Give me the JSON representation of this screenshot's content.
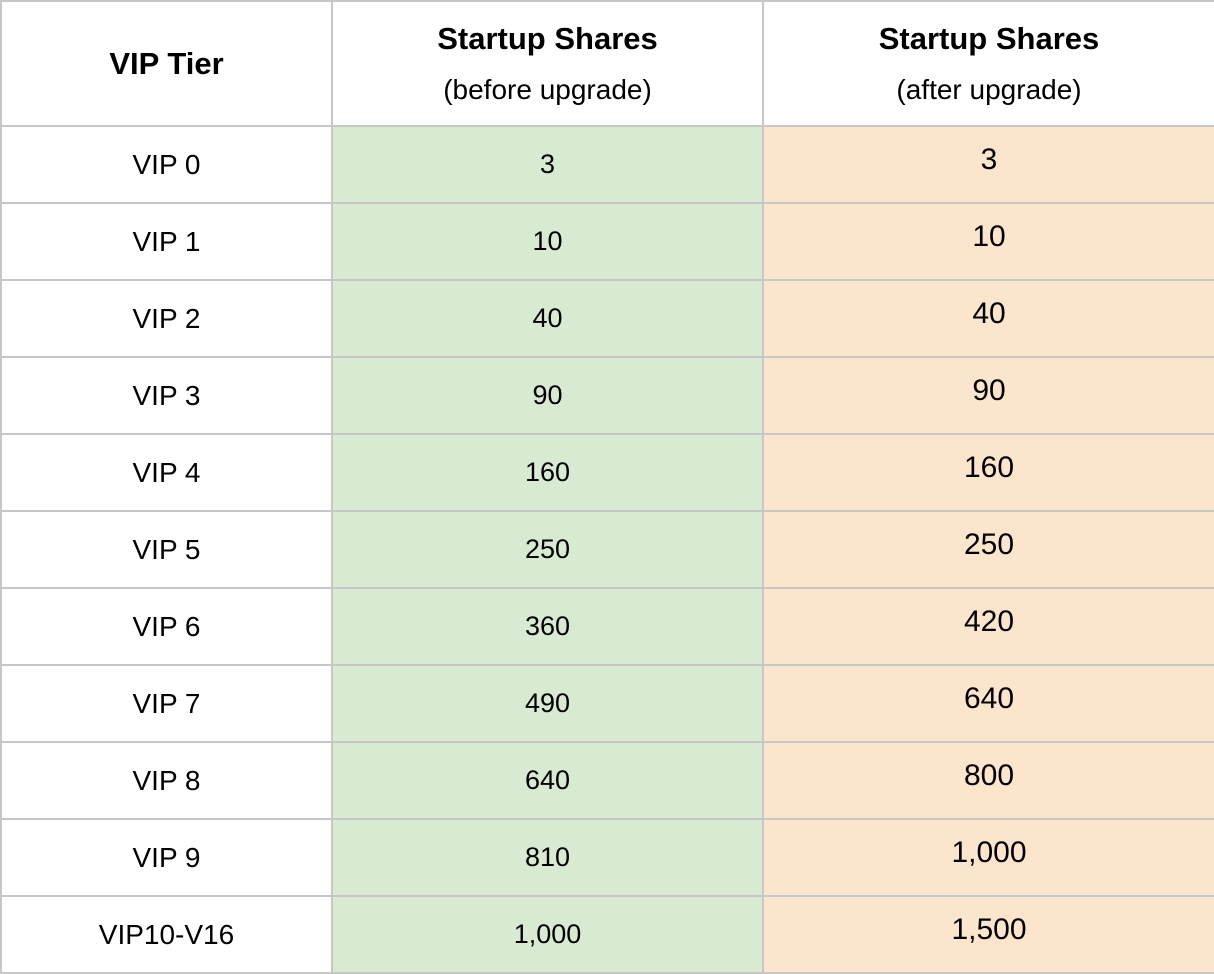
{
  "table": {
    "columns": [
      {
        "title": "VIP Tier",
        "subtitle": ""
      },
      {
        "title": "Startup Shares",
        "subtitle": "(before upgrade)"
      },
      {
        "title": "Startup Shares",
        "subtitle": "(after upgrade)"
      }
    ],
    "rows": [
      {
        "tier": "VIP 0",
        "before": "3",
        "after": "3"
      },
      {
        "tier": "VIP 1",
        "before": "10",
        "after": "10"
      },
      {
        "tier": "VIP 2",
        "before": "40",
        "after": "40"
      },
      {
        "tier": "VIP 3",
        "before": "90",
        "after": "90"
      },
      {
        "tier": "VIP 4",
        "before": "160",
        "after": "160"
      },
      {
        "tier": "VIP 5",
        "before": "250",
        "after": "250"
      },
      {
        "tier": "VIP 6",
        "before": "360",
        "after": "420"
      },
      {
        "tier": "VIP 7",
        "before": "490",
        "after": "640"
      },
      {
        "tier": "VIP 8",
        "before": "640",
        "after": "800"
      },
      {
        "tier": "VIP 9",
        "before": "810",
        "after": "1,000"
      },
      {
        "tier": "VIP10-V16",
        "before": "1,000",
        "after": "1,500"
      }
    ],
    "colors": {
      "before_bg": "#d9ead3",
      "after_bg": "#fce5cd",
      "border": "#c7c7c7",
      "header_bg": "#ffffff",
      "text": "#000000"
    }
  }
}
